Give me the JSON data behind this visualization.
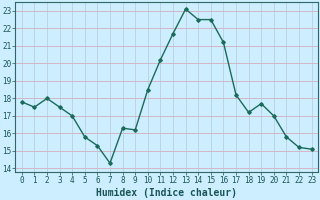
{
  "x": [
    0,
    1,
    2,
    3,
    4,
    5,
    6,
    7,
    8,
    9,
    10,
    11,
    12,
    13,
    14,
    15,
    16,
    17,
    18,
    19,
    20,
    21,
    22,
    23
  ],
  "y": [
    17.8,
    17.5,
    18.0,
    17.5,
    17.0,
    15.8,
    15.3,
    14.3,
    16.3,
    16.2,
    18.5,
    20.2,
    21.7,
    23.1,
    22.5,
    22.5,
    21.2,
    18.2,
    17.2,
    17.7,
    17.0,
    15.8,
    15.2,
    15.1
  ],
  "line_color": "#1a6b5a",
  "marker": "D",
  "marker_size": 1.8,
  "bg_color": "#cceeff",
  "grid_color_h": "#d4a0b0",
  "grid_color_v": "#b8c8d8",
  "xlabel": "Humidex (Indice chaleur)",
  "xlabel_fontsize": 7,
  "yticks": [
    14,
    15,
    16,
    17,
    18,
    19,
    20,
    21,
    22,
    23
  ],
  "xticks": [
    0,
    1,
    2,
    3,
    4,
    5,
    6,
    7,
    8,
    9,
    10,
    11,
    12,
    13,
    14,
    15,
    16,
    17,
    18,
    19,
    20,
    21,
    22,
    23
  ],
  "ylim": [
    13.8,
    23.5
  ],
  "xlim": [
    -0.5,
    23.5
  ],
  "tick_fontsize": 5.5,
  "linewidth": 1.0,
  "spine_color": "#336666",
  "tick_color": "#1a5555"
}
